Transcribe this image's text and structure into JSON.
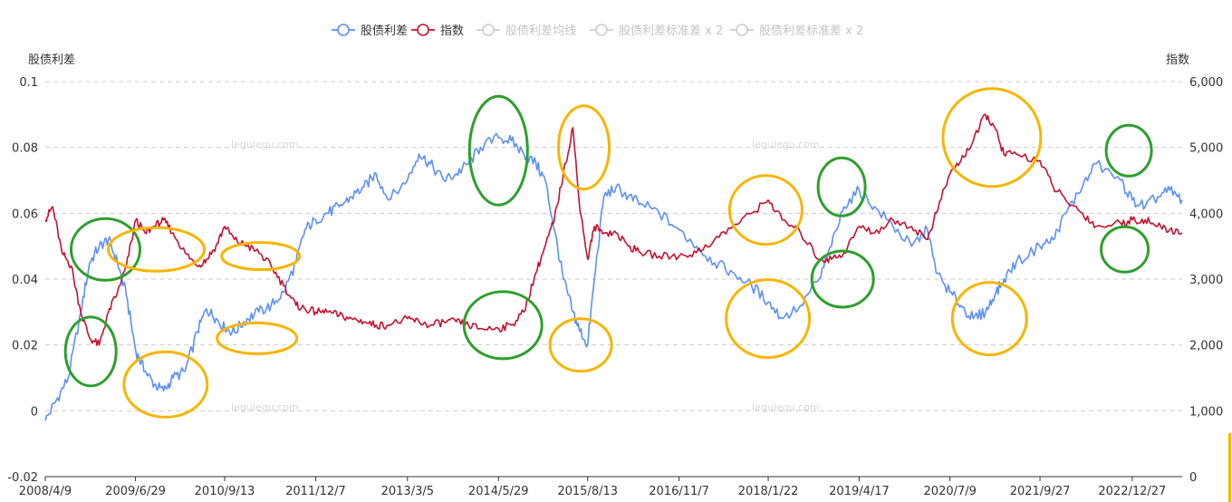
{
  "chart_data": {
    "type": "line",
    "title": "",
    "left_axis": {
      "name": "股债利差",
      "ticks": [
        "0.1",
        "0.08",
        "0.06",
        "0.04",
        "0.02",
        "0",
        "-0.02"
      ],
      "ylim": [
        -0.02,
        0.1
      ]
    },
    "right_axis": {
      "name": "指数",
      "ticks": [
        "6,000",
        "5,000",
        "4,000",
        "3,000",
        "2,000",
        "1,000",
        "0"
      ],
      "ylim": [
        0,
        6000
      ]
    },
    "x_ticks": [
      "2008/4/9",
      "2009/6/29",
      "2010/9/13",
      "2011/12/7",
      "2013/3/5",
      "2014/5/29",
      "2015/8/13",
      "2016/11/7",
      "2018/1/22",
      "2019/4/17",
      "2020/7/9",
      "2021/9/27",
      "2022/12/27"
    ],
    "x_range": [
      "2008/4/9",
      "2023/8/31"
    ],
    "grid": true,
    "legend_position": "top-center",
    "legend": [
      {
        "name": "股债利差",
        "color": "#5b8ff9",
        "active": true
      },
      {
        "name": "指数",
        "color": "#c8102e",
        "active": true
      },
      {
        "name": "股债利差均线",
        "color": "#cccccc",
        "active": false
      },
      {
        "name": "股债利差标准差 x 2",
        "color": "#cccccc",
        "active": false
      },
      {
        "name": "股债利差标准差 x 2",
        "color": "#cccccc",
        "active": false
      }
    ],
    "series": [
      {
        "name": "股债利差",
        "axis": "left",
        "color": "#5b8ff9",
        "x": [
          "2008/4/9",
          "2008/6/1",
          "2008/8/1",
          "2008/10/1",
          "2008/11/15",
          "2009/1/1",
          "2009/2/15",
          "2009/4/1",
          "2009/5/15",
          "2009/7/1",
          "2009/8/15",
          "2009/10/1",
          "2009/11/15",
          "2010/1/1",
          "2010/3/1",
          "2010/5/1",
          "2010/6/15",
          "2010/8/1",
          "2010/9/13",
          "2010/11/1",
          "2011/1/1",
          "2011/3/1",
          "2011/5/1",
          "2011/7/1",
          "2011/9/1",
          "2011/10/15",
          "2011/12/7",
          "2012/2/1",
          "2012/4/1",
          "2012/6/1",
          "2012/8/1",
          "2012/10/1",
          "2012/12/1",
          "2013/3/5",
          "2013/5/1",
          "2013/6/25",
          "2013/9/1",
          "2013/11/1",
          "2014/1/1",
          "2014/3/1",
          "2014/5/29",
          "2014/8/1",
          "2014/10/1",
          "2014/12/1",
          "2015/1/15",
          "2015/3/1",
          "2015/4/15",
          "2015/6/1",
          "2015/7/1",
          "2015/8/13",
          "2015/9/15",
          "2015/11/1",
          "2016/1/1",
          "2016/3/1",
          "2016/5/1",
          "2016/8/1",
          "2016/11/7",
          "2017/2/1",
          "2017/5/1",
          "2017/8/1",
          "2017/11/1",
          "2018/1/22",
          "2018/4/1",
          "2018/7/1",
          "2018/10/1",
          "2018/12/1",
          "2019/2/1",
          "2019/4/17",
          "2019/7/1",
          "2019/10/1",
          "2020/1/1",
          "2020/3/20",
          "2020/5/1",
          "2020/7/9",
          "2020/9/1",
          "2020/11/1",
          "2021/1/1",
          "2021/2/15",
          "2021/4/1",
          "2021/6/1",
          "2021/9/27",
          "2021/12/1",
          "2022/2/1",
          "2022/4/25",
          "2022/7/1",
          "2022/10/31",
          "2022/12/27",
          "2023/3/1",
          "2023/5/1",
          "2023/7/1",
          "2023/8/31"
        ],
        "values": [
          -0.003,
          0.003,
          0.01,
          0.03,
          0.045,
          0.05,
          0.052,
          0.045,
          0.035,
          0.018,
          0.012,
          0.008,
          0.006,
          0.01,
          0.012,
          0.024,
          0.031,
          0.028,
          0.025,
          0.024,
          0.028,
          0.03,
          0.032,
          0.036,
          0.045,
          0.055,
          0.058,
          0.06,
          0.062,
          0.065,
          0.068,
          0.072,
          0.064,
          0.07,
          0.078,
          0.075,
          0.07,
          0.072,
          0.075,
          0.08,
          0.083,
          0.082,
          0.078,
          0.075,
          0.07,
          0.055,
          0.04,
          0.03,
          0.025,
          0.02,
          0.04,
          0.065,
          0.068,
          0.065,
          0.063,
          0.06,
          0.055,
          0.05,
          0.045,
          0.042,
          0.038,
          0.033,
          0.028,
          0.032,
          0.04,
          0.05,
          0.062,
          0.067,
          0.062,
          0.056,
          0.05,
          0.055,
          0.042,
          0.036,
          0.032,
          0.028,
          0.03,
          0.035,
          0.04,
          0.045,
          0.05,
          0.052,
          0.06,
          0.068,
          0.075,
          0.07,
          0.064,
          0.062,
          0.065,
          0.067,
          0.064
        ]
      },
      {
        "name": "指数",
        "axis": "right",
        "color": "#c8102e",
        "x": [
          "2008/4/9",
          "2008/5/15",
          "2008/7/1",
          "2008/8/15",
          "2008/10/1",
          "2008/11/15",
          "2009/1/1",
          "2009/2/15",
          "2009/4/1",
          "2009/5/15",
          "2009/7/1",
          "2009/8/15",
          "2009/10/1",
          "2009/11/15",
          "2010/1/1",
          "2010/3/1",
          "2010/5/1",
          "2010/6/15",
          "2010/8/1",
          "2010/9/13",
          "2010/11/1",
          "2011/1/1",
          "2011/3/1",
          "2011/5/1",
          "2011/7/1",
          "2011/9/1",
          "2011/10/15",
          "2011/12/7",
          "2012/2/1",
          "2012/4/1",
          "2012/6/1",
          "2012/8/1",
          "2012/10/1",
          "2012/12/1",
          "2013/3/5",
          "2013/5/1",
          "2013/6/25",
          "2013/9/1",
          "2013/11/1",
          "2014/1/1",
          "2014/3/1",
          "2014/5/29",
          "2014/8/1",
          "2014/10/1",
          "2014/12/1",
          "2015/1/15",
          "2015/3/1",
          "2015/4/15",
          "2015/6/1",
          "2015/7/1",
          "2015/8/13",
          "2015/9/15",
          "2015/11/1",
          "2016/1/1",
          "2016/3/1",
          "2016/5/1",
          "2016/8/1",
          "2016/11/7",
          "2017/2/1",
          "2017/5/1",
          "2017/8/1",
          "2017/11/1",
          "2018/1/22",
          "2018/4/1",
          "2018/7/1",
          "2018/10/1",
          "2018/12/1",
          "2019/2/1",
          "2019/4/17",
          "2019/7/1",
          "2019/10/1",
          "2020/1/1",
          "2020/3/20",
          "2020/5/1",
          "2020/7/9",
          "2020/9/1",
          "2020/11/1",
          "2021/1/1",
          "2021/2/15",
          "2021/4/1",
          "2021/6/1",
          "2021/9/27",
          "2021/12/1",
          "2022/2/1",
          "2022/4/25",
          "2022/7/1",
          "2022/10/31",
          "2022/12/27",
          "2023/3/1",
          "2023/5/1",
          "2023/7/1",
          "2023/8/31"
        ],
        "values": [
          3900,
          4100,
          3400,
          3200,
          2500,
          2100,
          2000,
          2500,
          2800,
          3200,
          3900,
          3700,
          3800,
          3900,
          3700,
          3400,
          3200,
          3300,
          3500,
          3800,
          3600,
          3500,
          3400,
          3200,
          2900,
          2600,
          2550,
          2500,
          2500,
          2450,
          2400,
          2350,
          2300,
          2300,
          2400,
          2350,
          2300,
          2350,
          2350,
          2300,
          2250,
          2250,
          2300,
          2500,
          3100,
          3500,
          3900,
          4600,
          5300,
          4200,
          3300,
          3800,
          3700,
          3700,
          3500,
          3400,
          3350,
          3350,
          3400,
          3600,
          3800,
          4000,
          4200,
          3900,
          3700,
          3300,
          3300,
          3400,
          3800,
          3700,
          3900,
          3800,
          3600,
          4000,
          4600,
          4800,
          5100,
          5500,
          5300,
          4900,
          4900,
          4800,
          4400,
          4200,
          4000,
          3800,
          3850,
          3900,
          3900,
          3800,
          3750,
          3700
        ]
      }
    ]
  },
  "watermarks": [
    "legulegu.com",
    "legulegu.com",
    "legulegu.com",
    "legulegu.com"
  ],
  "annotations": [
    {
      "color": "#2ca02c",
      "at": "2009/2/1",
      "value": 0.049,
      "axis": "left"
    },
    {
      "color": "#2ca02c",
      "at": "2008/11/20",
      "value": 0.018,
      "axis": "left"
    },
    {
      "color": "#f7b500",
      "at": "2009/10/10",
      "value": 0.049,
      "axis": "left"
    },
    {
      "color": "#f7b500",
      "at": "2009/11/25",
      "value": 0.008,
      "axis": "left"
    },
    {
      "color": "#f7b500",
      "at": "2011/3/10",
      "value": 0.047,
      "axis": "left"
    },
    {
      "color": "#f7b500",
      "at": "2011/2/20",
      "value": 0.022,
      "axis": "left"
    },
    {
      "color": "#2ca02c",
      "at": "2014/5/29",
      "value": 0.079,
      "axis": "left"
    },
    {
      "color": "#2ca02c",
      "at": "2014/6/20",
      "value": 0.026,
      "axis": "left"
    },
    {
      "color": "#f7b500",
      "at": "2015/7/25",
      "value": 0.08,
      "axis": "left"
    },
    {
      "color": "#f7b500",
      "at": "2015/7/10",
      "value": 0.02,
      "axis": "left"
    },
    {
      "color": "#f7b500",
      "at": "2018/1/10",
      "value": 0.061,
      "axis": "left"
    },
    {
      "color": "#f7b500",
      "at": "2018/1/20",
      "value": 0.028,
      "axis": "left"
    },
    {
      "color": "#2ca02c",
      "at": "2019/1/20",
      "value": 0.068,
      "axis": "left"
    },
    {
      "color": "#2ca02c",
      "at": "2019/1/25",
      "value": 0.04,
      "axis": "left"
    },
    {
      "color": "#f7b500",
      "at": "2021/2/1",
      "value": 0.083,
      "axis": "left"
    },
    {
      "color": "#f7b500",
      "at": "2021/1/20",
      "value": 0.028,
      "axis": "left"
    },
    {
      "color": "#2ca02c",
      "at": "2022/12/10",
      "value": 0.079,
      "axis": "left"
    },
    {
      "color": "#2ca02c",
      "at": "2022/11/20",
      "value": 0.049,
      "axis": "left"
    }
  ]
}
